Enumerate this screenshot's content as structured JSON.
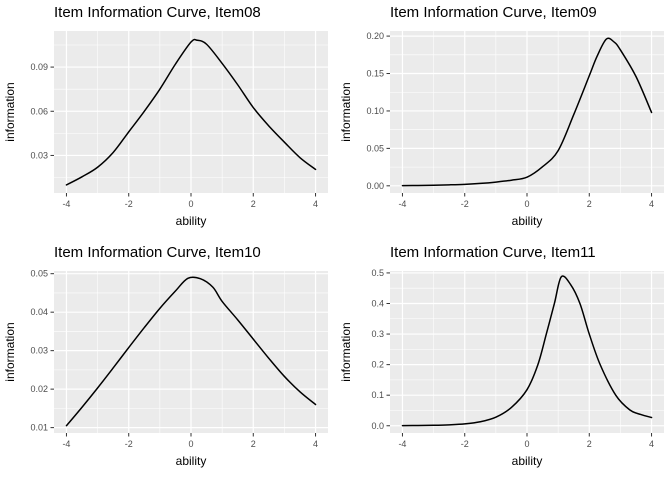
{
  "figure": {
    "background": "#ffffff",
    "panel_background": "#ebebeb",
    "grid_major_color": "#ffffff",
    "grid_minor_color": "#ffffff",
    "curve_color": "#000000",
    "tick_mark_color": "#333333",
    "axis_text_color": "#4d4d4d",
    "title_color": "#000000"
  },
  "chart_data": [
    {
      "type": "line",
      "title": "Item Information Curve, Item08",
      "xlabel": "ability",
      "ylabel": "information",
      "xlim": [
        -4.4,
        4.4
      ],
      "ylim": [
        0.0045,
        0.1145
      ],
      "x_ticks": [
        -4,
        -2,
        0,
        2,
        4
      ],
      "x_tick_labels": [
        "-4",
        "-2",
        "0",
        "2",
        "4"
      ],
      "x_minor": [
        -3,
        -1,
        1,
        3
      ],
      "y_ticks": [
        0.03,
        0.06,
        0.09
      ],
      "y_tick_labels": [
        "0.03",
        "0.06",
        "0.09"
      ],
      "y_minor": [
        0.015,
        0.045,
        0.075,
        0.105
      ],
      "grid": true,
      "legend": "none",
      "series": [
        {
          "name": "information",
          "x": [
            -4,
            -3.5,
            -3,
            -2.5,
            -2,
            -1.5,
            -1,
            -0.5,
            0,
            0.2,
            0.5,
            1,
            1.5,
            2,
            2.5,
            3,
            3.5,
            4
          ],
          "y": [
            0.01,
            0.0155,
            0.022,
            0.032,
            0.046,
            0.06,
            0.075,
            0.092,
            0.107,
            0.1082,
            0.1055,
            0.0925,
            0.078,
            0.0625,
            0.05,
            0.039,
            0.0285,
            0.0205
          ]
        }
      ]
    },
    {
      "type": "line",
      "title": "Item Information Curve, Item09",
      "xlabel": "ability",
      "ylabel": "information",
      "xlim": [
        -4.4,
        4.4
      ],
      "ylim": [
        -0.0096,
        0.2068
      ],
      "x_ticks": [
        -4,
        -2,
        0,
        2,
        4
      ],
      "x_tick_labels": [
        "-4",
        "-2",
        "0",
        "2",
        "4"
      ],
      "x_minor": [
        -3,
        -1,
        1,
        3
      ],
      "y_ticks": [
        0.0,
        0.05,
        0.1,
        0.15,
        0.2
      ],
      "y_tick_labels": [
        "0.00",
        "0.05",
        "0.10",
        "0.15",
        "0.20"
      ],
      "y_minor": [
        0.025,
        0.075,
        0.125,
        0.175
      ],
      "grid": true,
      "legend": "none",
      "series": [
        {
          "name": "information",
          "x": [
            -4,
            -3.5,
            -3,
            -2.5,
            -2,
            -1.5,
            -1,
            -0.5,
            0,
            0.5,
            1,
            1.5,
            2,
            2.25,
            2.55,
            2.8,
            3,
            3.5,
            4
          ],
          "y": [
            0.0003,
            0.0005,
            0.0008,
            0.0013,
            0.002,
            0.0032,
            0.005,
            0.0075,
            0.0115,
            0.0255,
            0.047,
            0.095,
            0.147,
            0.173,
            0.196,
            0.192,
            0.1815,
            0.146,
            0.098
          ]
        }
      ]
    },
    {
      "type": "line",
      "title": "Item Information Curve, Item10",
      "xlabel": "ability",
      "ylabel": "information",
      "xlim": [
        -4.4,
        4.4
      ],
      "ylim": [
        0.0086,
        0.0507
      ],
      "x_ticks": [
        -4,
        -2,
        0,
        2,
        4
      ],
      "x_tick_labels": [
        "-4",
        "-2",
        "0",
        "2",
        "4"
      ],
      "x_minor": [
        -3,
        -1,
        1,
        3
      ],
      "y_ticks": [
        0.01,
        0.02,
        0.03,
        0.04,
        0.05
      ],
      "y_tick_labels": [
        "0.01",
        "0.02",
        "0.03",
        "0.04",
        "0.05"
      ],
      "y_minor": [
        0.015,
        0.025,
        0.035,
        0.045
      ],
      "grid": true,
      "legend": "none",
      "series": [
        {
          "name": "information",
          "x": [
            -4,
            -3.5,
            -3,
            -2.5,
            -2,
            -1.5,
            -1,
            -0.5,
            -0.1,
            0.3,
            0.7,
            1,
            1.5,
            2,
            2.5,
            3,
            3.5,
            4
          ],
          "y": [
            0.0105,
            0.0153,
            0.0203,
            0.0255,
            0.0308,
            0.036,
            0.041,
            0.0455,
            0.0488,
            0.0487,
            0.0465,
            0.0428,
            0.038,
            0.033,
            0.028,
            0.0233,
            0.0193,
            0.016
          ]
        }
      ]
    },
    {
      "type": "line",
      "title": "Item Information Curve, Item11",
      "xlabel": "ability",
      "ylabel": "information",
      "xlim": [
        -4.4,
        4.4
      ],
      "ylim": [
        -0.0237,
        0.5063
      ],
      "x_ticks": [
        -4,
        -2,
        0,
        2,
        4
      ],
      "x_tick_labels": [
        "-4",
        "-2",
        "0",
        "2",
        "4"
      ],
      "x_minor": [
        -3,
        -1,
        1,
        3
      ],
      "y_ticks": [
        0.0,
        0.1,
        0.2,
        0.3,
        0.4,
        0.5
      ],
      "y_tick_labels": [
        "0.0",
        "0.1",
        "0.2",
        "0.3",
        "0.4",
        "0.5"
      ],
      "y_minor": [
        0.05,
        0.15,
        0.25,
        0.35,
        0.45
      ],
      "grid": true,
      "legend": "none",
      "series": [
        {
          "name": "information",
          "x": [
            -4,
            -3.5,
            -3,
            -2.5,
            -2,
            -1.5,
            -1,
            -0.5,
            0,
            0.35,
            0.62,
            0.88,
            1.1,
            1.4,
            1.7,
            2,
            2.35,
            2.85,
            3.3,
            3.65,
            4
          ],
          "y": [
            0.0005,
            0.0008,
            0.0015,
            0.003,
            0.006,
            0.013,
            0.028,
            0.06,
            0.118,
            0.2,
            0.3,
            0.4,
            0.487,
            0.462,
            0.4,
            0.3,
            0.2,
            0.1,
            0.052,
            0.037,
            0.027
          ]
        }
      ]
    }
  ]
}
